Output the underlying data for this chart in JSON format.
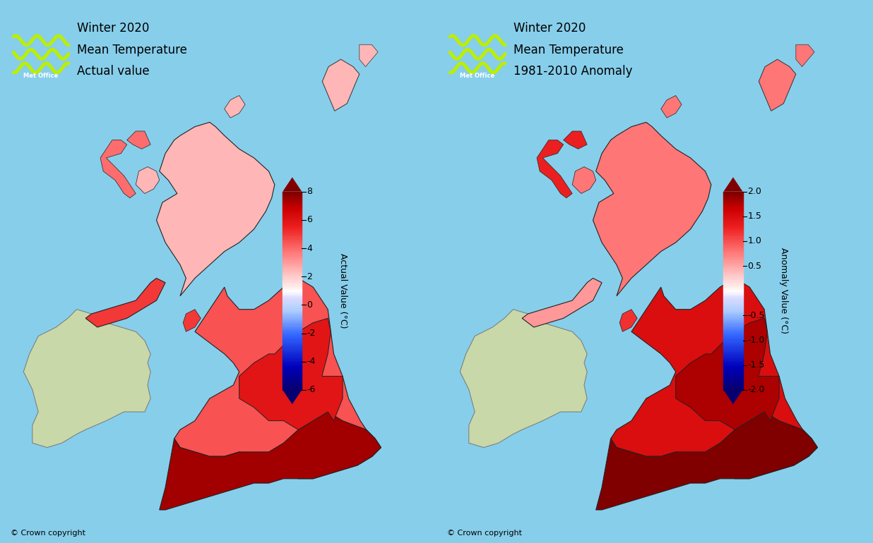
{
  "left_title_line1": "Winter 2020",
  "left_title_line2": "Mean Temperature",
  "left_title_line3": "Actual value",
  "right_title_line1": "Winter 2020",
  "right_title_line2": "Mean Temperature",
  "right_title_line3": "1981-2010 Anomaly",
  "left_cbar_label": "Actual Value (°C)",
  "right_cbar_label": "Anomaly Value (°C)",
  "left_cbar_ticks": [
    8,
    6,
    4,
    2,
    0,
    -2,
    -4,
    -6
  ],
  "right_cbar_ticks": [
    2.0,
    1.5,
    1.0,
    0.5,
    -0.5,
    -1.0,
    -1.5,
    -2.0
  ],
  "copyright_text": "© Crown copyright",
  "background_color": "#87CEEB",
  "ireland_color": "#c8d8a8",
  "ireland_outline": "#888888",
  "title_fontsize": 12,
  "cbar_fontsize": 9,
  "copyright_fontsize": 8,
  "lon_min": -8.2,
  "lon_max": 1.8,
  "lat_min": 49.8,
  "lat_max": 60.9,
  "lon_min_full": -10.8,
  "lon_max_full": 1.8,
  "lat_min_full": 49.8,
  "lat_max_full": 60.9
}
